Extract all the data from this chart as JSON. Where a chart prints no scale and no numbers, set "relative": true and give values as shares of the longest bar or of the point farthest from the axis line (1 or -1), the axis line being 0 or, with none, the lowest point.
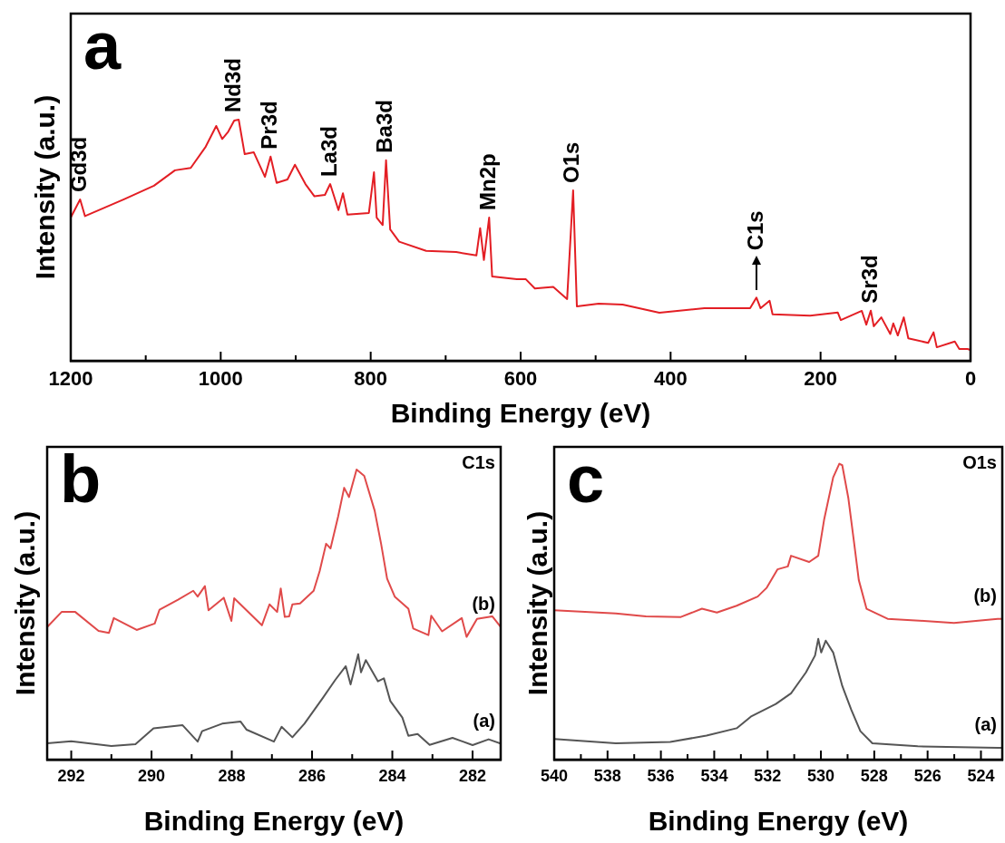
{
  "chart_data": [
    {
      "type": "line",
      "xlabel": "Binding Energy (eV)",
      "ylabel": "Intensity (a.u.)",
      "relative": true,
      "xlim": [
        1200,
        0
      ],
      "xticks": [
        1200,
        {
          "value": 1100,
          "label": null
        },
        1000,
        {
          "value": 900,
          "label": null
        },
        800,
        {
          "value": 700,
          "label": null
        },
        600,
        {
          "value": 500,
          "label": null
        },
        400,
        {
          "value": 300,
          "label": null
        },
        200,
        {
          "value": 100,
          "label": null
        },
        0
      ],
      "marker": "none",
      "legend": false,
      "annotations": [
        "a",
        {
          "text": "Gd3d",
          "x": 1187.5,
          "y": 0.669
        },
        {
          "text": "Nd3d",
          "x": 982,
          "y": 1.0
        },
        {
          "text": "Pr3d",
          "x": 933.5,
          "y": 0.847
        },
        {
          "text": "La3d",
          "x": 854,
          "y": 0.733
        },
        {
          "text": "Ba3d",
          "x": 779.5,
          "y": 0.832
        },
        {
          "text": "Mn2p",
          "x": 642,
          "y": 0.594
        },
        {
          "text": "O1s",
          "x": 530,
          "y": 0.707
        },
        {
          "text": "C1s",
          "x": 285.5,
          "y": 0.262
        },
        {
          "text": "Sr3d",
          "x": 133,
          "y": 0.208
        }
      ],
      "series": [
        {
          "color": "#e31e24",
          "x": [
            1200,
            1187.5,
            1181,
            1129,
            1089,
            1061,
            1040,
            1020,
            1006,
            998,
            990,
            982,
            976,
            968,
            956,
            941,
            933.5,
            925.4,
            911,
            901,
            887,
            875,
            861,
            854,
            843,
            837,
            831,
            802.4,
            795.6,
            792,
            784,
            779.5,
            774,
            762,
            726,
            686,
            659,
            654,
            649,
            642,
            638,
            605,
            593,
            581,
            556.5,
            538,
            530,
            525,
            496,
            464,
            415,
            355,
            294,
            285.5,
            280,
            268,
            264,
            214,
            177,
            173,
            145,
            139,
            133,
            129,
            119,
            107,
            103,
            97,
            89,
            83,
            56.5,
            49.3,
            45,
            21,
            15,
            4,
            0
          ],
          "values": [
            0.594,
            0.669,
            0.6,
            0.67,
            0.726,
            0.79,
            0.8,
            0.888,
            0.974,
            0.92,
            0.95,
            0.996,
            1.0,
            0.857,
            0.865,
            0.763,
            0.847,
            0.738,
            0.752,
            0.813,
            0.733,
            0.682,
            0.688,
            0.733,
            0.625,
            0.695,
            0.606,
            0.613,
            0.782,
            0.594,
            0.563,
            0.832,
            0.545,
            0.494,
            0.456,
            0.451,
            0.437,
            0.55,
            0.418,
            0.594,
            0.35,
            0.338,
            0.338,
            0.3,
            0.306,
            0.256,
            0.707,
            0.226,
            0.237,
            0.233,
            0.199,
            0.218,
            0.218,
            0.262,
            0.218,
            0.249,
            0.193,
            0.187,
            0.2,
            0.169,
            0.207,
            0.15,
            0.208,
            0.143,
            0.18,
            0.111,
            0.155,
            0.105,
            0.18,
            0.093,
            0.074,
            0.118,
            0.056,
            0.08,
            0.049,
            0.049,
            0.045
          ]
        }
      ]
    },
    {
      "type": "line",
      "xlabel": "Binding Energy (eV)",
      "ylabel": "Intensity (a.u.)",
      "relative": true,
      "xlim": [
        292.6,
        281.3
      ],
      "xticks": [
        292,
        {
          "value": 291,
          "label": null
        },
        290,
        {
          "value": 289,
          "label": null
        },
        288,
        {
          "value": 287,
          "label": null
        },
        286,
        {
          "value": 285,
          "label": null
        },
        284,
        {
          "value": 283,
          "label": null
        },
        282
      ],
      "marker": "none",
      "legend": false,
      "annotations": [
        "b",
        "C1s"
      ],
      "series": [
        {
          "name": "(b)",
          "color": "#e04a4a",
          "x": [
            292.6,
            292.24,
            291.9,
            291.32,
            291.06,
            290.94,
            290.37,
            289.92,
            289.8,
            289.34,
            288.96,
            288.85,
            288.67,
            288.58,
            288.2,
            288.01,
            287.94,
            287.25,
            287.06,
            286.87,
            286.78,
            286.68,
            286.57,
            286.49,
            286.3,
            285.96,
            285.81,
            285.65,
            285.54,
            285.35,
            285.2,
            285.08,
            284.89,
            284.7,
            284.44,
            284.28,
            284.13,
            283.94,
            283.6,
            283.48,
            283.1,
            283.03,
            282.76,
            282.27,
            282.15,
            281.89,
            281.51,
            281.3
          ],
          "values": [
            0.457,
            0.509,
            0.509,
            0.444,
            0.437,
            0.488,
            0.447,
            0.469,
            0.517,
            0.551,
            0.582,
            0.562,
            0.598,
            0.515,
            0.558,
            0.478,
            0.556,
            0.463,
            0.535,
            0.509,
            0.59,
            0.492,
            0.494,
            0.535,
            0.538,
            0.582,
            0.65,
            0.744,
            0.728,
            0.838,
            0.937,
            0.905,
            1.0,
            0.978,
            0.858,
            0.744,
            0.624,
            0.562,
            0.52,
            0.452,
            0.429,
            0.496,
            0.442,
            0.488,
            0.423,
            0.485,
            0.494,
            0.457
          ]
        },
        {
          "name": "(a)",
          "color": "#555555",
          "x": [
            292.6,
            292.0,
            291.0,
            290.4,
            289.95,
            289.23,
            288.85,
            288.74,
            288.24,
            287.78,
            287.63,
            286.95,
            286.76,
            286.49,
            286.19,
            285.73,
            285.42,
            285.16,
            285.04,
            284.85,
            284.78,
            284.66,
            284.36,
            284.21,
            284.05,
            283.75,
            283.6,
            283.37,
            283.07,
            282.5,
            282.0,
            281.6,
            281.3
          ],
          "values": [
            0.056,
            0.063,
            0.047,
            0.053,
            0.108,
            0.119,
            0.062,
            0.098,
            0.124,
            0.131,
            0.103,
            0.062,
            0.113,
            0.077,
            0.124,
            0.213,
            0.275,
            0.322,
            0.259,
            0.363,
            0.301,
            0.343,
            0.27,
            0.28,
            0.202,
            0.145,
            0.082,
            0.088,
            0.051,
            0.075,
            0.05,
            0.07,
            0.055
          ]
        }
      ]
    },
    {
      "type": "line",
      "xlabel": "Binding Energy (eV)",
      "ylabel": "Intensity (a.u.)",
      "relative": true,
      "xlim": [
        540,
        523.2
      ],
      "xticks": [
        540,
        {
          "value": 539,
          "label": null
        },
        538,
        {
          "value": 537,
          "label": null
        },
        536,
        {
          "value": 535,
          "label": null
        },
        534,
        {
          "value": 533,
          "label": null
        },
        532,
        {
          "value": 531,
          "label": null
        },
        530,
        {
          "value": 529,
          "label": null
        },
        528,
        {
          "value": 527,
          "label": null
        },
        526,
        {
          "value": 525,
          "label": null
        },
        524
      ],
      "marker": "none",
      "legend": false,
      "annotations": [
        "c",
        "O1s"
      ],
      "series": [
        {
          "name": "(b)",
          "color": "#e04a4a",
          "x": [
            540,
            537.69,
            536.56,
            535.25,
            534.46,
            533.9,
            533.16,
            532.37,
            532.03,
            531.63,
            531.24,
            531.12,
            530.44,
            530.1,
            529.88,
            529.54,
            529.31,
            529.2,
            528.97,
            528.75,
            528.58,
            528.29,
            527.5,
            526.14,
            525.01,
            523.37,
            523.2
          ],
          "values": [
            0.505,
            0.494,
            0.484,
            0.482,
            0.51,
            0.497,
            0.52,
            0.551,
            0.581,
            0.643,
            0.653,
            0.689,
            0.668,
            0.689,
            0.811,
            0.954,
            1.0,
            0.995,
            0.883,
            0.729,
            0.607,
            0.51,
            0.476,
            0.469,
            0.462,
            0.476,
            0.476
          ]
        },
        {
          "name": "(a)",
          "color": "#555555",
          "x": [
            540,
            537.69,
            535.65,
            534.29,
            533.16,
            532.6,
            531.69,
            531.12,
            530.56,
            530.22,
            530.1,
            529.99,
            529.82,
            529.54,
            529.2,
            528.86,
            528.52,
            528.07,
            526.37,
            523.37,
            523.2
          ],
          "values": [
            0.07,
            0.055,
            0.06,
            0.081,
            0.106,
            0.147,
            0.188,
            0.224,
            0.295,
            0.352,
            0.408,
            0.362,
            0.402,
            0.362,
            0.249,
            0.168,
            0.096,
            0.055,
            0.045,
            0.04,
            0.04
          ]
        }
      ]
    }
  ]
}
